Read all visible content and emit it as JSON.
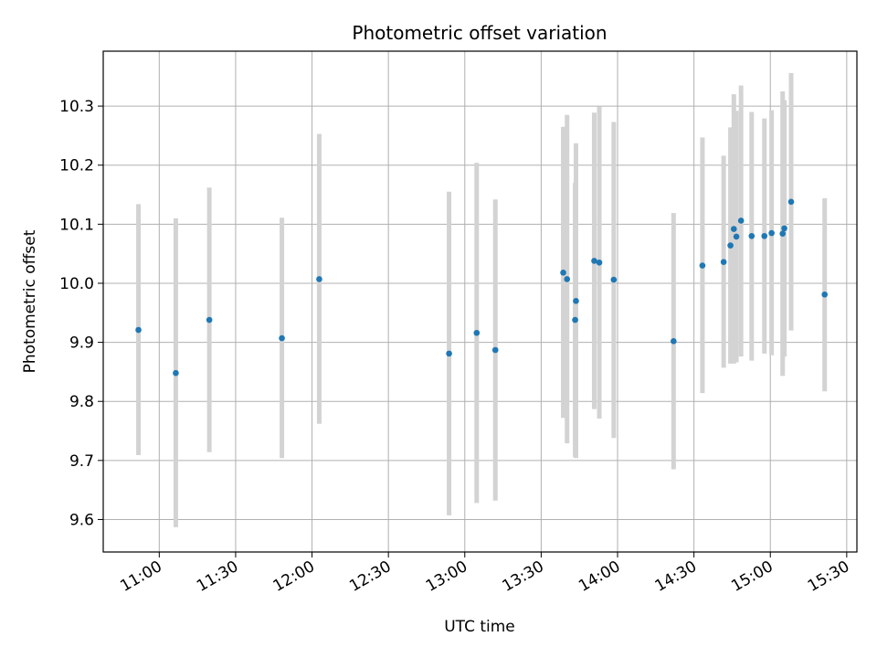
{
  "chart_data": {
    "type": "scatter",
    "title": "Photometric offset variation",
    "xlabel": "UTC time",
    "ylabel": "Photometric offset",
    "x_axis": "time",
    "xlim": [
      "10:38",
      "15:34"
    ],
    "ylim": [
      9.545,
      10.393
    ],
    "x_ticks": [
      "11:00",
      "11:30",
      "12:00",
      "12:30",
      "13:00",
      "13:30",
      "14:00",
      "14:30",
      "15:00",
      "15:30"
    ],
    "y_ticks": [
      9.6,
      9.7,
      9.8,
      9.9,
      10.0,
      10.1,
      10.2,
      10.3
    ],
    "y_tick_labels": [
      "9.6",
      "9.7",
      "9.8",
      "9.9",
      "10.0",
      "10.1",
      "10.2",
      "10.3"
    ],
    "grid": true,
    "marker_color": "#1f77b4",
    "errorbar_color": "#d3d3d3",
    "points": [
      {
        "t": "10:51:50",
        "y": 9.921,
        "lo": 9.709,
        "hi": 10.134
      },
      {
        "t": "11:06:30",
        "y": 9.848,
        "lo": 9.587,
        "hi": 10.11
      },
      {
        "t": "11:19:40",
        "y": 9.938,
        "lo": 9.714,
        "hi": 10.162
      },
      {
        "t": "11:48:10",
        "y": 9.907,
        "lo": 9.704,
        "hi": 10.111
      },
      {
        "t": "12:02:50",
        "y": 10.007,
        "lo": 9.762,
        "hi": 10.253
      },
      {
        "t": "12:53:50",
        "y": 9.881,
        "lo": 9.607,
        "hi": 10.155
      },
      {
        "t": "13:04:40",
        "y": 9.916,
        "lo": 9.628,
        "hi": 10.204
      },
      {
        "t": "13:12:00",
        "y": 9.887,
        "lo": 9.632,
        "hi": 10.142
      },
      {
        "t": "13:38:40",
        "y": 10.018,
        "lo": 9.772,
        "hi": 10.265
      },
      {
        "t": "13:40:10",
        "y": 10.007,
        "lo": 9.729,
        "hi": 10.285
      },
      {
        "t": "13:43:20",
        "y": 9.938,
        "lo": 9.706,
        "hi": 10.17
      },
      {
        "t": "13:43:40",
        "y": 9.97,
        "lo": 9.704,
        "hi": 10.237
      },
      {
        "t": "13:50:50",
        "y": 10.038,
        "lo": 9.787,
        "hi": 10.289
      },
      {
        "t": "13:52:50",
        "y": 10.035,
        "lo": 9.771,
        "hi": 10.299
      },
      {
        "t": "13:58:30",
        "y": 10.006,
        "lo": 9.738,
        "hi": 10.273
      },
      {
        "t": "14:22:00",
        "y": 9.902,
        "lo": 9.685,
        "hi": 10.119
      },
      {
        "t": "14:33:20",
        "y": 10.03,
        "lo": 9.814,
        "hi": 10.247
      },
      {
        "t": "14:41:40",
        "y": 10.036,
        "lo": 9.857,
        "hi": 10.216
      },
      {
        "t": "14:44:20",
        "y": 10.064,
        "lo": 9.864,
        "hi": 10.264
      },
      {
        "t": "14:45:40",
        "y": 10.092,
        "lo": 9.864,
        "hi": 10.32
      },
      {
        "t": "14:46:40",
        "y": 10.079,
        "lo": 9.866,
        "hi": 10.292
      },
      {
        "t": "14:48:30",
        "y": 10.106,
        "lo": 9.876,
        "hi": 10.335
      },
      {
        "t": "14:52:40",
        "y": 10.08,
        "lo": 9.869,
        "hi": 10.29
      },
      {
        "t": "14:57:40",
        "y": 10.08,
        "lo": 9.881,
        "hi": 10.279
      },
      {
        "t": "15:00:30",
        "y": 10.085,
        "lo": 9.878,
        "hi": 10.293
      },
      {
        "t": "15:04:50",
        "y": 10.084,
        "lo": 9.843,
        "hi": 10.325
      },
      {
        "t": "15:05:30",
        "y": 10.093,
        "lo": 9.876,
        "hi": 10.31
      },
      {
        "t": "15:08:10",
        "y": 10.138,
        "lo": 9.92,
        "hi": 10.356
      },
      {
        "t": "15:21:20",
        "y": 9.981,
        "lo": 9.817,
        "hi": 10.144
      }
    ]
  }
}
